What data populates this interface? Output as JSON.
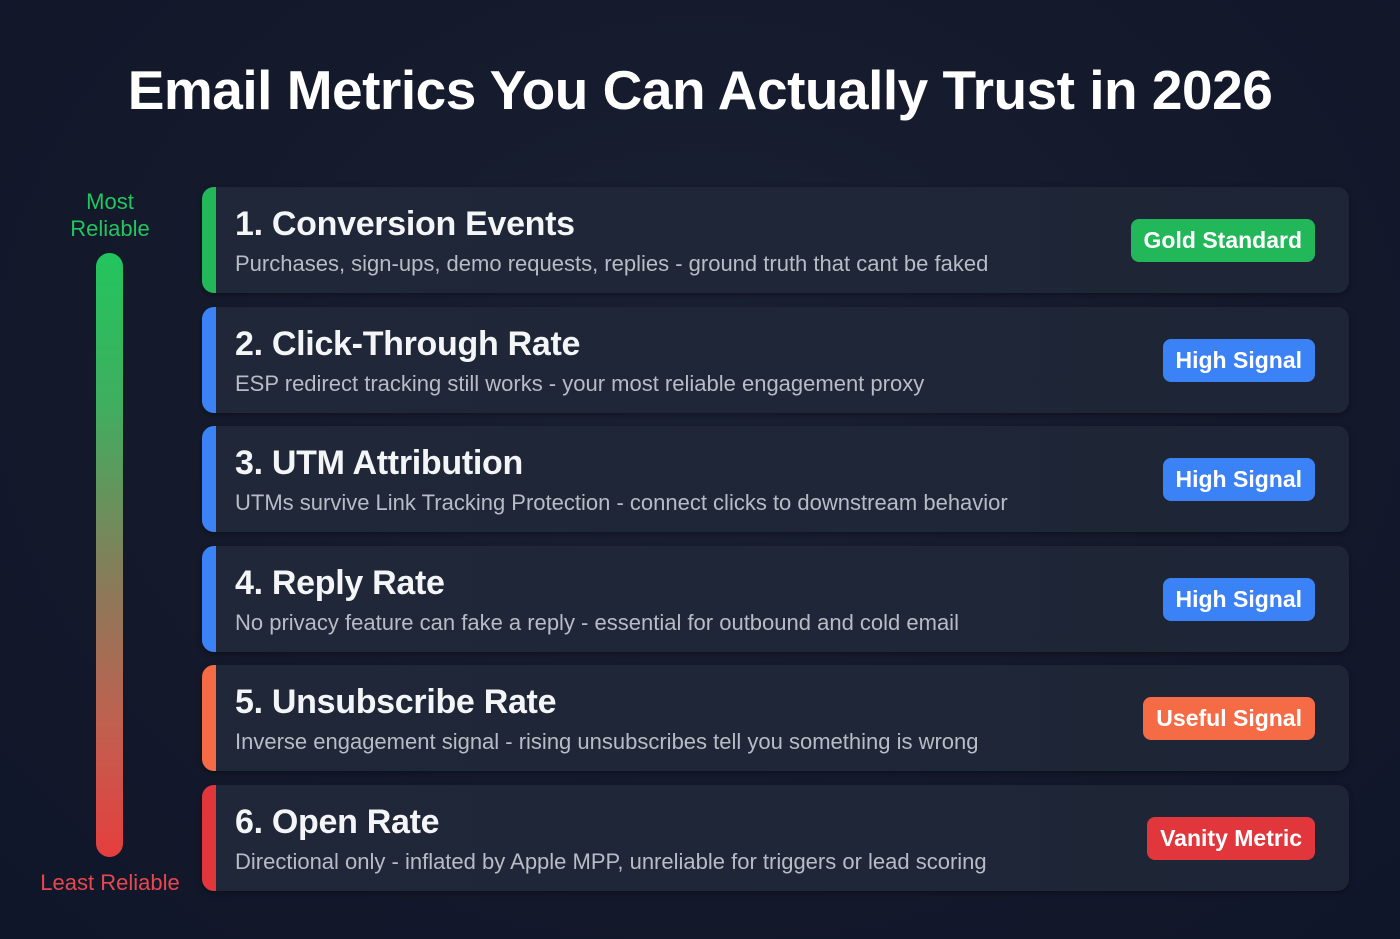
{
  "title": "Email Metrics You Can Actually Trust in 2026",
  "scale": {
    "top_label": "Most Reliable",
    "top_line1": "Most",
    "top_line2": "Reliable",
    "bottom_label": "Least Reliable",
    "top_color": "#22c55e",
    "bottom_color": "#e53e3e"
  },
  "metrics": [
    {
      "name": "1. Conversion Events",
      "description": "Purchases, sign-ups, demo requests, replies - ground truth that cant be faked",
      "badge": "Gold Standard",
      "color": "#22b85a"
    },
    {
      "name": "2. Click-Through Rate",
      "description": "ESP redirect tracking still works - your most reliable engagement proxy",
      "badge": "High Signal",
      "color": "#3b82f6"
    },
    {
      "name": "3. UTM Attribution",
      "description": "UTMs survive Link Tracking Protection - connect clicks to downstream behavior",
      "badge": "High Signal",
      "color": "#3b82f6"
    },
    {
      "name": "4. Reply Rate",
      "description": "No privacy feature can fake a reply - essential for outbound and cold email",
      "badge": "High Signal",
      "color": "#3b82f6"
    },
    {
      "name": "5. Unsubscribe Rate",
      "description": "Inverse engagement signal - rising unsubscribes tell you something is wrong",
      "badge": "Useful Signal",
      "color": "#f56b45"
    },
    {
      "name": "6. Open Rate",
      "description": "Directional only - inflated by Apple MPP, unreliable for triggers or lead scoring",
      "badge": "Vanity Metric",
      "color": "#e0363c"
    }
  ]
}
